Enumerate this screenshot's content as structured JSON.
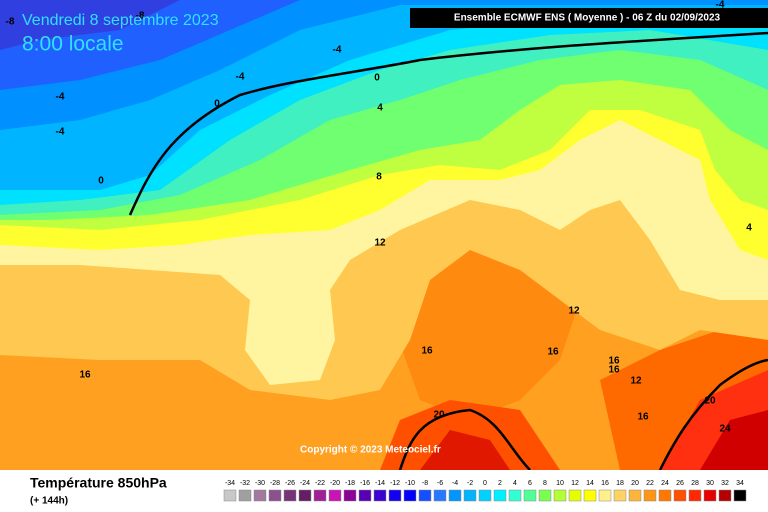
{
  "title": "Vendredi 8 septembre 2023",
  "subtitle": "8:00 locale",
  "header": "Ensemble ECMWF ENS  ( Moyenne )  -  06 Z du 02/09/2023",
  "copyright": "Copyright © 2023 Meteociel.fr",
  "variable": "Température 850hPa",
  "lead": "(+ 144h)",
  "contour_labels": [
    -8,
    -8,
    -4,
    -4,
    -4,
    -4,
    -4,
    0,
    0,
    0,
    4,
    8,
    12,
    12,
    16,
    16,
    16,
    16,
    12,
    16,
    20,
    20,
    24,
    4,
    16
  ],
  "color_scale": {
    "values": [
      -34,
      -32,
      -30,
      -28,
      -26,
      -24,
      -22,
      -20,
      -18,
      -16,
      -14,
      -12,
      -10,
      -8,
      -6,
      -4,
      -2,
      0,
      2,
      4,
      6,
      8,
      10,
      12,
      14,
      16,
      18,
      20,
      22,
      24,
      26,
      28,
      30,
      32,
      34
    ],
    "colors": [
      "#c8c8c8",
      "#a0a0a0",
      "#a078a0",
      "#8c508c",
      "#783278",
      "#641e64",
      "#a01e96",
      "#c814b4",
      "#8c0096",
      "#5a00b4",
      "#3c00d2",
      "#1400f0",
      "#0000ff",
      "#1450ff",
      "#2878ff",
      "#0096ff",
      "#00b4ff",
      "#00d2ff",
      "#00f0ff",
      "#32ffd2",
      "#50ff96",
      "#78ff50",
      "#b4ff32",
      "#e6ff00",
      "#ffff00",
      "#fff08c",
      "#ffd264",
      "#ffb43c",
      "#ff9614",
      "#ff7800",
      "#ff5000",
      "#ff2800",
      "#e60000",
      "#b40000",
      "#000000"
    ]
  }
}
